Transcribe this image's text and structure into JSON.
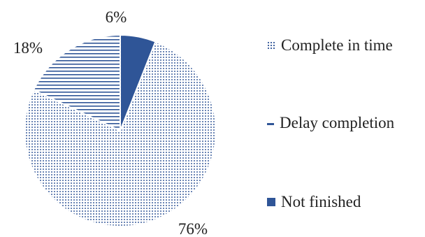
{
  "chart_data": {
    "type": "pie",
    "title": "",
    "slices": [
      {
        "label": "Complete in time",
        "value": 76,
        "display": "76%",
        "pattern": "dots"
      },
      {
        "label": "Delay completion",
        "value": 18,
        "display": "18%",
        "pattern": "horizontal-lines"
      },
      {
        "label": "Not finished",
        "value": 6,
        "display": "6%",
        "pattern": "solid"
      }
    ],
    "start": "top, slices drawn clockwise from the 6% slice",
    "legend_position": "right",
    "colors": {
      "series": "#2f5597",
      "background": "#ffffff",
      "text": "#222222"
    }
  }
}
